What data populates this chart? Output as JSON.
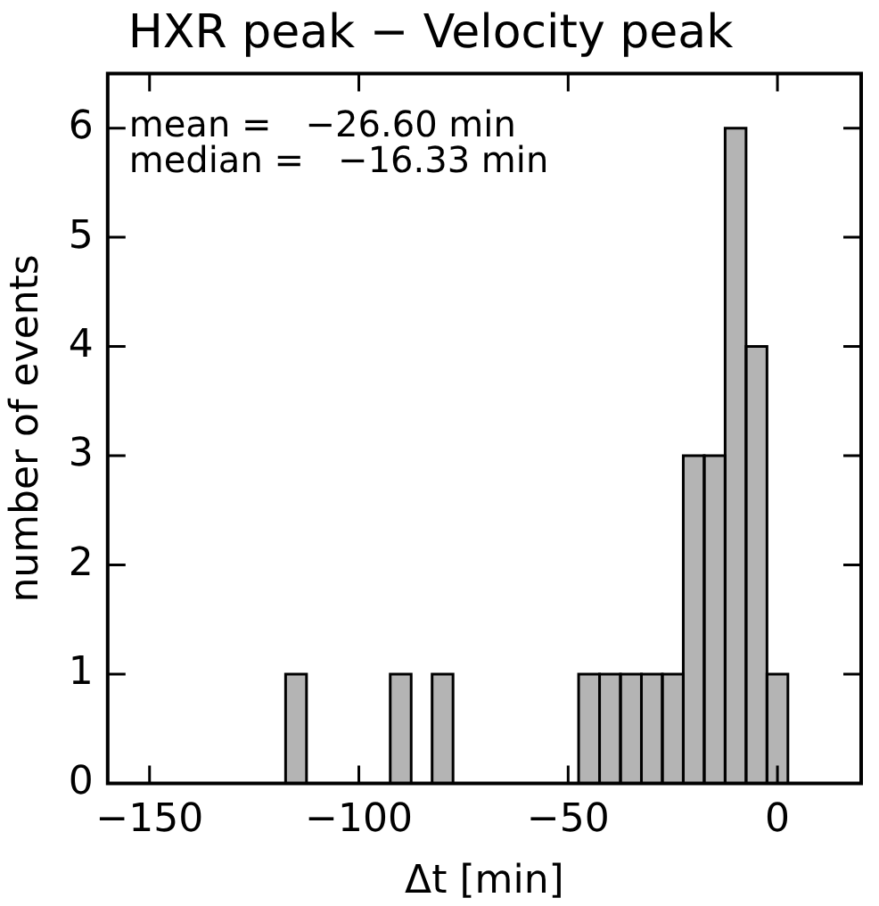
{
  "chart_data": {
    "type": "histogram",
    "title": "HXR peak − Velocity peak",
    "xlabel": "Δt [min]",
    "ylabel": "number of events",
    "bins": [
      -117.5,
      -112.5,
      -107.5,
      -102.5,
      -97.5,
      -92.5,
      -87.5,
      -82.5,
      -77.5,
      -72.5,
      -67.5,
      -62.5,
      -57.5,
      -52.5,
      -47.5,
      -42.5,
      -37.5,
      -32.5,
      -27.5,
      -22.5,
      -17.5,
      -12.5,
      -7.5,
      -2.5,
      2.5
    ],
    "values": [
      1,
      0,
      0,
      0,
      0,
      1,
      0,
      1,
      0,
      0,
      0,
      0,
      0,
      0,
      1,
      1,
      1,
      1,
      1,
      3,
      3,
      6,
      4,
      1
    ],
    "color": "#b4b4b4",
    "xlim": [
      -160,
      20
    ],
    "xticks": [
      -150,
      -100,
      -50,
      0
    ],
    "ylim": [
      0,
      6.5
    ],
    "yticks": [
      0,
      1,
      2,
      3,
      4,
      5,
      6
    ],
    "annotations": [
      "mean =   −26.60 min",
      "median =   −16.33 min"
    ],
    "grid": false,
    "legend": false
  }
}
